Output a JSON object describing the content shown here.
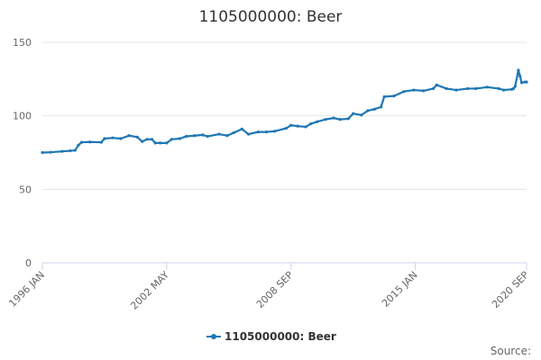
{
  "chart_data": {
    "type": "line",
    "title": "1105000000: Beer",
    "xlabel": "",
    "ylabel": "",
    "ylim": [
      0,
      150
    ],
    "y_ticks": [
      0,
      50,
      100,
      150
    ],
    "x_ticks": [
      {
        "label": "1996 JAN",
        "date": "1996-01"
      },
      {
        "label": "2002 MAY",
        "date": "2002-05"
      },
      {
        "label": "2008 SEP",
        "date": "2008-09"
      },
      {
        "label": "2015 JAN",
        "date": "2015-01"
      },
      {
        "label": "2020 SEP",
        "date": "2020-09"
      }
    ],
    "x_range": [
      "1996-01",
      "2020-09"
    ],
    "grid": "horizontal",
    "legend": "bottom-center",
    "source_label": "Source:",
    "color": "#1f77b4",
    "series": [
      {
        "name": "1105000000: Beer",
        "points": [
          [
            "1996-01",
            75.0
          ],
          [
            "1996-06",
            75.2
          ],
          [
            "1997-01",
            75.8
          ],
          [
            "1997-06",
            76.2
          ],
          [
            "1997-09",
            76.5
          ],
          [
            "1997-11",
            80.0
          ],
          [
            "1998-01",
            82.0
          ],
          [
            "1998-06",
            82.2
          ],
          [
            "1999-01",
            82.0
          ],
          [
            "1999-03",
            84.5
          ],
          [
            "1999-08",
            85.0
          ],
          [
            "2000-01",
            84.5
          ],
          [
            "2000-06",
            86.5
          ],
          [
            "2000-11",
            85.5
          ],
          [
            "2001-02",
            82.5
          ],
          [
            "2001-05",
            84.0
          ],
          [
            "2001-08",
            84.0
          ],
          [
            "2001-10",
            81.5
          ],
          [
            "2002-01",
            81.5
          ],
          [
            "2002-05",
            81.5
          ],
          [
            "2002-08",
            84.0
          ],
          [
            "2003-01",
            84.5
          ],
          [
            "2003-05",
            86.0
          ],
          [
            "2003-10",
            86.5
          ],
          [
            "2004-03",
            87.0
          ],
          [
            "2004-06",
            86.0
          ],
          [
            "2005-01",
            87.5
          ],
          [
            "2005-06",
            86.5
          ],
          [
            "2005-10",
            88.5
          ],
          [
            "2006-03",
            91.0
          ],
          [
            "2006-07",
            87.5
          ],
          [
            "2007-01",
            89.0
          ],
          [
            "2007-06",
            89.0
          ],
          [
            "2007-11",
            89.5
          ],
          [
            "2008-06",
            91.5
          ],
          [
            "2008-09",
            93.5
          ],
          [
            "2009-01",
            93.0
          ],
          [
            "2009-06",
            92.5
          ],
          [
            "2009-09",
            94.5
          ],
          [
            "2010-01",
            96.0
          ],
          [
            "2010-06",
            97.5
          ],
          [
            "2010-11",
            98.5
          ],
          [
            "2011-03",
            97.5
          ],
          [
            "2011-08",
            98.0
          ],
          [
            "2011-11",
            101.5
          ],
          [
            "2012-04",
            100.5
          ],
          [
            "2012-08",
            103.5
          ],
          [
            "2012-12",
            104.5
          ],
          [
            "2013-04",
            106.0
          ],
          [
            "2013-06",
            113.0
          ],
          [
            "2013-12",
            113.5
          ],
          [
            "2014-06",
            116.5
          ],
          [
            "2014-12",
            117.5
          ],
          [
            "2015-06",
            117.0
          ],
          [
            "2015-12",
            118.5
          ],
          [
            "2016-02",
            121.0
          ],
          [
            "2016-08",
            118.5
          ],
          [
            "2017-02",
            117.5
          ],
          [
            "2017-09",
            118.5
          ],
          [
            "2018-02",
            118.5
          ],
          [
            "2018-09",
            119.5
          ],
          [
            "2019-04",
            118.5
          ],
          [
            "2019-07",
            117.5
          ],
          [
            "2019-12",
            118.0
          ],
          [
            "2020-01",
            118.5
          ],
          [
            "2020-02",
            120.0
          ],
          [
            "2020-04",
            131.0
          ],
          [
            "2020-05",
            127.0
          ],
          [
            "2020-06",
            122.5
          ],
          [
            "2020-08",
            123.0
          ],
          [
            "2020-09",
            123.0
          ]
        ]
      }
    ]
  }
}
